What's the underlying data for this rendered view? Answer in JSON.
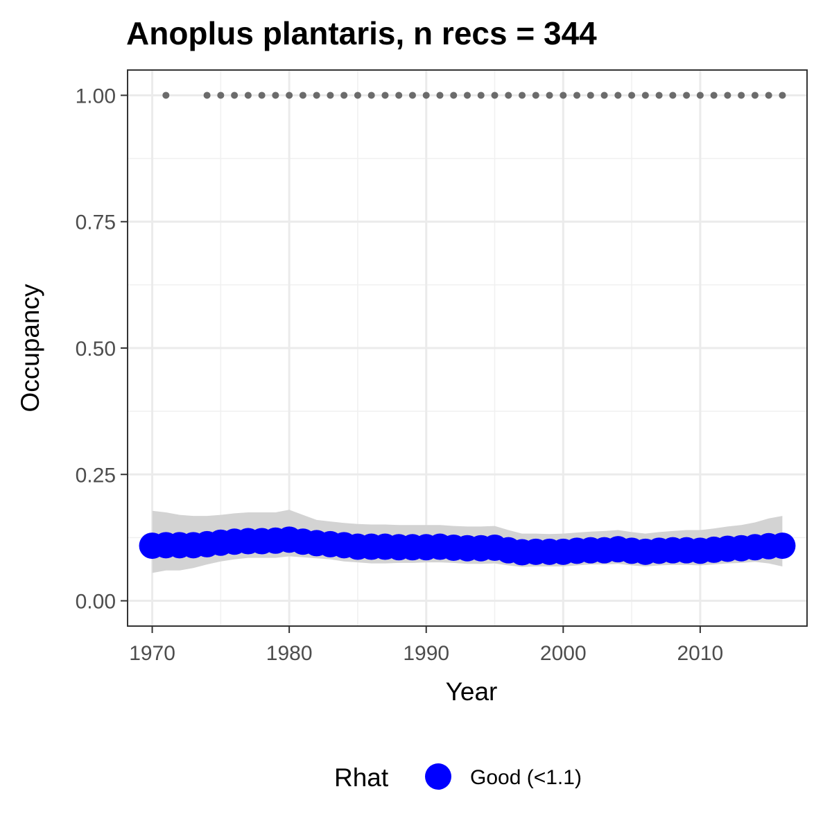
{
  "chart_data": {
    "type": "line",
    "title": "Anoplus plantaris, n recs = 344",
    "xlabel": "Year",
    "ylabel": "Occupancy",
    "xlim": [
      1968.2,
      2017.8
    ],
    "ylim": [
      -0.05,
      1.05
    ],
    "x_ticks": [
      1970,
      1980,
      1990,
      2000,
      2010
    ],
    "x_tick_labels": [
      "1970",
      "1980",
      "1990",
      "2000",
      "2010"
    ],
    "y_ticks": [
      0.0,
      0.25,
      0.5,
      0.75,
      1.0
    ],
    "y_tick_labels": [
      "0.00",
      "0.25",
      "0.50",
      "0.75",
      "1.00"
    ],
    "grid": true,
    "years": [
      1970,
      1971,
      1972,
      1973,
      1974,
      1975,
      1976,
      1977,
      1978,
      1979,
      1980,
      1981,
      1982,
      1983,
      1984,
      1985,
      1986,
      1987,
      1988,
      1989,
      1990,
      1991,
      1992,
      1993,
      1994,
      1995,
      1996,
      1997,
      1998,
      1999,
      2000,
      2001,
      2002,
      2003,
      2004,
      2005,
      2006,
      2007,
      2008,
      2009,
      2010,
      2011,
      2012,
      2013,
      2014,
      2015,
      2016
    ],
    "series": [
      {
        "name": "Good (<1.1)",
        "color": "#0000ff",
        "values": [
          0.109,
          0.11,
          0.11,
          0.11,
          0.112,
          0.115,
          0.117,
          0.118,
          0.118,
          0.119,
          0.121,
          0.117,
          0.114,
          0.112,
          0.11,
          0.107,
          0.107,
          0.107,
          0.106,
          0.106,
          0.106,
          0.107,
          0.105,
          0.104,
          0.104,
          0.105,
          0.1,
          0.096,
          0.097,
          0.097,
          0.097,
          0.099,
          0.1,
          0.1,
          0.102,
          0.099,
          0.097,
          0.099,
          0.1,
          0.1,
          0.099,
          0.101,
          0.103,
          0.104,
          0.106,
          0.108,
          0.109
        ],
        "lower": [
          0.055,
          0.06,
          0.06,
          0.065,
          0.072,
          0.078,
          0.082,
          0.085,
          0.085,
          0.085,
          0.088,
          0.086,
          0.084,
          0.082,
          0.078,
          0.076,
          0.074,
          0.074,
          0.075,
          0.075,
          0.076,
          0.076,
          0.075,
          0.073,
          0.073,
          0.074,
          0.07,
          0.067,
          0.068,
          0.068,
          0.068,
          0.07,
          0.072,
          0.072,
          0.073,
          0.07,
          0.068,
          0.07,
          0.071,
          0.071,
          0.07,
          0.072,
          0.074,
          0.075,
          0.077,
          0.074,
          0.068
        ],
        "upper": [
          0.178,
          0.175,
          0.17,
          0.168,
          0.168,
          0.17,
          0.173,
          0.175,
          0.175,
          0.175,
          0.18,
          0.17,
          0.16,
          0.157,
          0.154,
          0.152,
          0.151,
          0.151,
          0.15,
          0.15,
          0.15,
          0.15,
          0.148,
          0.147,
          0.147,
          0.148,
          0.14,
          0.133,
          0.133,
          0.132,
          0.133,
          0.135,
          0.137,
          0.138,
          0.14,
          0.136,
          0.133,
          0.136,
          0.138,
          0.14,
          0.14,
          0.143,
          0.147,
          0.15,
          0.155,
          0.163,
          0.168
        ]
      }
    ],
    "record_years": [
      1971,
      1974,
      1975,
      1976,
      1977,
      1978,
      1979,
      1980,
      1981,
      1982,
      1983,
      1984,
      1985,
      1986,
      1987,
      1988,
      1989,
      1990,
      1991,
      1992,
      1993,
      1994,
      1995,
      1996,
      1997,
      1998,
      1999,
      2000,
      2001,
      2002,
      2003,
      2004,
      2005,
      2006,
      2007,
      2008,
      2009,
      2010,
      2011,
      2012,
      2013,
      2014,
      2015,
      2016
    ],
    "record_value": 1.0,
    "record_color": "#6b6b6b",
    "band_color": "#d3d3d3",
    "legend": {
      "title": "Rhat",
      "placement": "bottom",
      "items": [
        {
          "label": "Good (<1.1)",
          "color": "#0000ff"
        }
      ]
    }
  }
}
